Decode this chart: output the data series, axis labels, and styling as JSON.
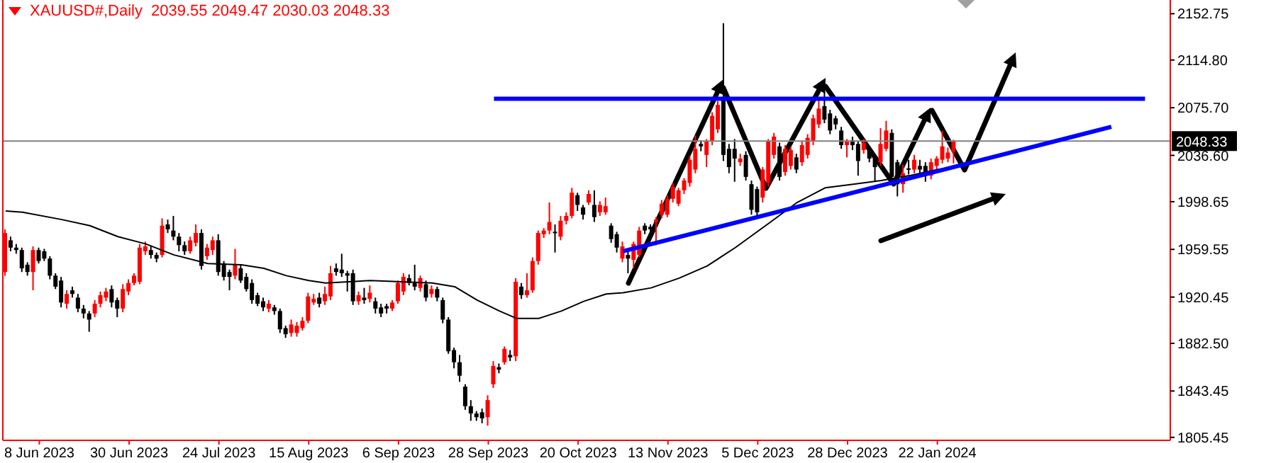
{
  "chart_data": {
    "type": "candlestick",
    "title": "XAUUSD#,Daily",
    "annotations": [
      "2039.55 2049.47 2030.03 2048.33"
    ],
    "marker": "none",
    "categories": [
      null,
      null,
      null,
      null,
      null,
      null,
      "8 Jun 2023",
      null,
      null,
      null,
      null,
      null,
      null,
      null,
      null,
      null,
      null,
      null,
      null,
      null,
      null,
      null,
      "30 Jun 2023",
      null,
      null,
      null,
      null,
      null,
      null,
      null,
      null,
      null,
      null,
      null,
      null,
      null,
      null,
      null,
      "24 Jul 2023",
      null,
      null,
      null,
      null,
      null,
      null,
      null,
      null,
      null,
      null,
      null,
      null,
      null,
      null,
      null,
      "15 Aug 2023",
      null,
      null,
      null,
      null,
      null,
      null,
      null,
      null,
      null,
      null,
      null,
      null,
      null,
      null,
      null,
      "6 Sep 2023",
      null,
      null,
      null,
      null,
      null,
      null,
      null,
      null,
      null,
      null,
      null,
      null,
      null,
      null,
      null,
      "28 Sep 2023",
      null,
      null,
      null,
      null,
      null,
      null,
      null,
      null,
      null,
      null,
      null,
      null,
      null,
      null,
      null,
      "20 Oct 2023",
      null,
      null,
      null,
      null,
      null,
      null,
      null,
      null,
      null,
      null,
      null,
      null,
      null,
      null,
      null,
      "13 Nov 2023",
      null,
      null,
      null,
      null,
      null,
      null,
      null,
      null,
      null,
      null,
      null,
      null,
      null,
      null,
      null,
      "5 Dec 2023",
      null,
      null,
      null,
      null,
      null,
      null,
      null,
      null,
      null,
      null,
      null,
      null,
      null,
      null,
      null,
      "28 Dec 2023",
      null,
      null,
      null,
      null,
      null,
      null,
      null,
      null,
      null,
      null,
      null,
      null,
      null,
      null,
      null,
      "22 Jan 2024",
      null,
      null,
      null,
      null,
      null,
      null,
      null,
      null,
      null,
      null,
      null,
      null,
      null,
      null,
      null,
      null,
      null,
      null,
      null,
      null,
      null,
      null,
      null,
      null,
      null,
      null,
      null,
      null,
      null,
      null,
      null,
      null,
      null,
      null,
      null,
      null,
      null,
      null,
      null,
      null,
      null
    ],
    "ohlc": [
      [
        1941,
        1976,
        1938,
        1973
      ],
      [
        1967,
        1970,
        1958,
        1961
      ],
      [
        1961,
        1964,
        1956,
        1959
      ],
      [
        1959,
        1961,
        1941,
        1944
      ],
      [
        1947,
        1949,
        1938,
        1941
      ],
      [
        1941,
        1962,
        1926,
        1959
      ],
      [
        1959,
        1961,
        1948,
        1950
      ],
      [
        1958,
        1960,
        1950,
        1952
      ],
      [
        1952,
        1954,
        1935,
        1938
      ],
      [
        1938,
        1940,
        1927,
        1929
      ],
      [
        1934,
        1937,
        1912,
        1916
      ],
      [
        1915,
        1926,
        1911,
        1923
      ],
      [
        1926,
        1929,
        1920,
        1923
      ],
      [
        1920,
        1923,
        1908,
        1911
      ],
      [
        1911,
        1914,
        1903,
        1907
      ],
      [
        1907,
        1909,
        1892,
        1902
      ],
      [
        1907,
        1918,
        1904,
        1915
      ],
      [
        1915,
        1925,
        1912,
        1922
      ],
      [
        1920,
        1928,
        1917,
        1925
      ],
      [
        1927,
        1930,
        1912,
        1916
      ],
      [
        1918,
        1920,
        1904,
        1911
      ],
      [
        1911,
        1931,
        1908,
        1927
      ],
      [
        1925,
        1935,
        1922,
        1932
      ],
      [
        1932,
        1940,
        1930,
        1938
      ],
      [
        1933,
        1964,
        1931,
        1961
      ],
      [
        1958,
        1966,
        1955,
        1962
      ],
      [
        1959,
        1962,
        1952,
        1955
      ],
      [
        1955,
        1957,
        1949,
        1952
      ],
      [
        1955,
        1985,
        1953,
        1979
      ],
      [
        1980,
        1984,
        1973,
        1976
      ],
      [
        1975,
        1987,
        1967,
        1970
      ],
      [
        1970,
        1973,
        1958,
        1963
      ],
      [
        1963,
        1966,
        1955,
        1958
      ],
      [
        1958,
        1970,
        1956,
        1967
      ],
      [
        1965,
        1980,
        1962,
        1973
      ],
      [
        1973,
        1976,
        1943,
        1946
      ],
      [
        1954,
        1964,
        1951,
        1961
      ],
      [
        1959,
        1970,
        1955,
        1967
      ],
      [
        1967,
        1972,
        1938,
        1941
      ],
      [
        1948,
        1950,
        1934,
        1937
      ],
      [
        1941,
        1943,
        1926,
        1937
      ],
      [
        1938,
        1960,
        1935,
        1947
      ],
      [
        1944,
        1947,
        1932,
        1934
      ],
      [
        1937,
        1940,
        1925,
        1927
      ],
      [
        1932,
        1935,
        1915,
        1918
      ],
      [
        1922,
        1924,
        1913,
        1915
      ],
      [
        1917,
        1920,
        1909,
        1912
      ],
      [
        1911,
        1918,
        1908,
        1915
      ],
      [
        1912,
        1914,
        1906,
        1909
      ],
      [
        1909,
        1911,
        1891,
        1894
      ],
      [
        1895,
        1897,
        1887,
        1890
      ],
      [
        1891,
        1902,
        1888,
        1898
      ],
      [
        1891,
        1900,
        1888,
        1897
      ],
      [
        1895,
        1904,
        1893,
        1901
      ],
      [
        1901,
        1924,
        1899,
        1921
      ],
      [
        1916,
        1923,
        1914,
        1919
      ],
      [
        1920,
        1924,
        1912,
        1915
      ],
      [
        1917,
        1929,
        1914,
        1923
      ],
      [
        1921,
        1946,
        1918,
        1940
      ],
      [
        1944,
        1948,
        1938,
        1941
      ],
      [
        1943,
        1956,
        1937,
        1940
      ],
      [
        1940,
        1942,
        1925,
        1938
      ],
      [
        1940,
        1943,
        1914,
        1917
      ],
      [
        1917,
        1925,
        1914,
        1922
      ],
      [
        1920,
        1928,
        1915,
        1918
      ],
      [
        1919,
        1930,
        1916,
        1924
      ],
      [
        1917,
        1920,
        1907,
        1911
      ],
      [
        1912,
        1915,
        1904,
        1907
      ],
      [
        1913,
        1915,
        1907,
        1911
      ],
      [
        1911,
        1918,
        1909,
        1916
      ],
      [
        1917,
        1934,
        1915,
        1932
      ],
      [
        1925,
        1940,
        1922,
        1937
      ],
      [
        1936,
        1939,
        1930,
        1932
      ],
      [
        1932,
        1947,
        1926,
        1929
      ],
      [
        1928,
        1938,
        1925,
        1936
      ],
      [
        1931,
        1934,
        1917,
        1920
      ],
      [
        1923,
        1930,
        1920,
        1927
      ],
      [
        1927,
        1929,
        1917,
        1920
      ],
      [
        1918,
        1920,
        1899,
        1902
      ],
      [
        1902,
        1904,
        1874,
        1876
      ],
      [
        1877,
        1879,
        1862,
        1867
      ],
      [
        1867,
        1873,
        1851,
        1856
      ],
      [
        1847,
        1849,
        1828,
        1831
      ],
      [
        1831,
        1836,
        1819,
        1825
      ],
      [
        1825,
        1827,
        1819,
        1822
      ],
      [
        1826,
        1829,
        1817,
        1821
      ],
      [
        1822,
        1840,
        1815,
        1836
      ],
      [
        1849,
        1868,
        1846,
        1864
      ],
      [
        1863,
        1866,
        1858,
        1861
      ],
      [
        1867,
        1880,
        1865,
        1878
      ],
      [
        1873,
        1877,
        1868,
        1871
      ],
      [
        1872,
        1936,
        1868,
        1933
      ],
      [
        1929,
        1932,
        1919,
        1922
      ],
      [
        1922,
        1940,
        1920,
        1926
      ],
      [
        1926,
        1953,
        1924,
        1950
      ],
      [
        1950,
        1975,
        1947,
        1973
      ],
      [
        1972,
        1977,
        1969,
        1975
      ],
      [
        1975,
        1998,
        1972,
        1982
      ],
      [
        1974,
        1980,
        1957,
        1973
      ],
      [
        1970,
        1987,
        1967,
        1983
      ],
      [
        1983,
        1990,
        1980,
        1987
      ],
      [
        1987,
        2010,
        1985,
        2006
      ],
      [
        2004,
        2006,
        1991,
        1996
      ],
      [
        1994,
        1996,
        1984,
        1988
      ],
      [
        1998,
        2008,
        1996,
        2005
      ],
      [
        1996,
        2008,
        1982,
        1986
      ],
      [
        1990,
        1999,
        1987,
        1996
      ],
      [
        1990,
        2002,
        1988,
        1995
      ],
      [
        1979,
        1981,
        1965,
        1968
      ],
      [
        1972,
        1974,
        1957,
        1961
      ],
      [
        1952,
        1966,
        1949,
        1962
      ],
      [
        1955,
        1958,
        1940,
        1952
      ],
      [
        1951,
        1966,
        1944,
        1964
      ],
      [
        1955,
        1978,
        1953,
        1975
      ],
      [
        1979,
        1981,
        1972,
        1975
      ],
      [
        1978,
        1980,
        1973,
        1976
      ],
      [
        1982,
        1986,
        1963,
        1984
      ],
      [
        1988,
        2000,
        1985,
        1997
      ],
      [
        1988,
        2004,
        1986,
        2001
      ],
      [
        2001,
        2014,
        1998,
        2011
      ],
      [
        1997,
        2010,
        1995,
        2008
      ],
      [
        2008,
        2018,
        2005,
        2016
      ],
      [
        2014,
        2036,
        2011,
        2033
      ],
      [
        2025,
        2053,
        2022,
        2042
      ],
      [
        2046,
        2049,
        2040,
        2044
      ],
      [
        2037,
        2050,
        2027,
        2048
      ],
      [
        2048,
        2072,
        2045,
        2069
      ],
      [
        2058,
        2081,
        2055,
        2078
      ],
      [
        2083,
        2145,
        2032,
        2037
      ],
      [
        2042,
        2046,
        2022,
        2027
      ],
      [
        2042,
        2050,
        2015,
        2034
      ],
      [
        2031,
        2038,
        2028,
        2034
      ],
      [
        2037,
        2040,
        2016,
        2019
      ],
      [
        2013,
        2016,
        1988,
        1992
      ],
      [
        2009,
        2011,
        1985,
        1990
      ],
      [
        2002,
        2027,
        1998,
        2025
      ],
      [
        2014,
        2050,
        2011,
        2048
      ],
      [
        2037,
        2055,
        2034,
        2052
      ],
      [
        2044,
        2047,
        2016,
        2019
      ],
      [
        2023,
        2045,
        2020,
        2042
      ],
      [
        2028,
        2044,
        2025,
        2041
      ],
      [
        2035,
        2038,
        2022,
        2025
      ],
      [
        2031,
        2048,
        2028,
        2045
      ],
      [
        2037,
        2054,
        2034,
        2051
      ],
      [
        2048,
        2070,
        2045,
        2067
      ],
      [
        2062,
        2083,
        2059,
        2075
      ],
      [
        2077,
        2089,
        2063,
        2066
      ],
      [
        2071,
        2074,
        2054,
        2057
      ],
      [
        2067,
        2069,
        2058,
        2062
      ],
      [
        2057,
        2060,
        2042,
        2045
      ],
      [
        2045,
        2050,
        2035,
        2048
      ],
      [
        2049,
        2052,
        2041,
        2045
      ],
      [
        2046,
        2048,
        2020,
        2032
      ],
      [
        2041,
        2050,
        2038,
        2047
      ],
      [
        2042,
        2044,
        2031,
        2034
      ],
      [
        2034,
        2036,
        2015,
        2027
      ],
      [
        2031,
        2059,
        2028,
        2046
      ],
      [
        2042,
        2065,
        2040,
        2057
      ],
      [
        2055,
        2058,
        2016,
        2019
      ],
      [
        2031,
        2033,
        2003,
        2013
      ],
      [
        2013,
        2029,
        2006,
        2022
      ],
      [
        2026,
        2033,
        2021,
        2025
      ],
      [
        2025,
        2037,
        2022,
        2033
      ],
      [
        2028,
        2033,
        2020,
        2025
      ],
      [
        2028,
        2031,
        2015,
        2022
      ],
      [
        2020,
        2034,
        2017,
        2031
      ],
      [
        2028,
        2036,
        2024,
        2034
      ],
      [
        2033,
        2057,
        2030,
        2044
      ],
      [
        2034,
        2043,
        2031,
        2039
      ],
      [
        2039.55,
        2049.47,
        2030.03,
        2048.33
      ],
      null,
      null,
      null,
      null,
      null,
      null,
      null,
      null,
      null,
      null,
      null,
      null,
      null,
      null,
      null,
      null,
      null,
      null,
      null,
      null,
      null,
      null,
      null,
      null,
      null,
      null,
      null,
      null,
      null,
      null,
      null,
      null,
      null,
      null,
      null,
      null,
      null,
      null
    ],
    "colors": [
      "#ff0000",
      "#000000",
      "#000000",
      "#000000",
      "#000000",
      "#ff0000",
      "#000000",
      "#000000",
      "#000000",
      "#000000",
      "#000000",
      "#ff0000",
      "#000000",
      "#000000",
      "#000000",
      "#000000",
      "#ff0000",
      "#ff0000",
      "#ff0000",
      "#000000",
      "#000000",
      "#ff0000",
      "#ff0000",
      "#ff0000",
      "#ff0000",
      "#ff0000",
      "#000000",
      "#000000",
      "#ff0000",
      "#000000",
      "#000000",
      "#000000",
      "#000000",
      "#ff0000",
      "#ff0000",
      "#000000",
      "#ff0000",
      "#ff0000",
      "#000000",
      "#000000",
      "#000000",
      "#ff0000",
      "#000000",
      "#000000",
      "#000000",
      "#000000",
      "#000000",
      "#ff0000",
      "#000000",
      "#000000",
      "#000000",
      "#ff0000",
      "#ff0000",
      "#ff0000",
      "#ff0000",
      "#ff0000",
      "#000000",
      "#ff0000",
      "#ff0000",
      "#000000",
      "#000000",
      "#000000",
      "#000000",
      "#ff0000",
      "#000000",
      "#ff0000",
      "#000000",
      "#000000",
      "#000000",
      "#ff0000",
      "#ff0000",
      "#ff0000",
      "#000000",
      "#000000",
      "#ff0000",
      "#000000",
      "#ff0000",
      "#000000",
      "#000000",
      "#000000",
      "#000000",
      "#000000",
      "#000000",
      "#000000",
      "#000000",
      "#000000",
      "#ff0000",
      "#ff0000",
      "#000000",
      "#ff0000",
      "#000000",
      "#ff0000",
      "#000000",
      "#ff0000",
      "#ff0000",
      "#ff0000",
      "#ff0000",
      "#ff0000",
      "#000000",
      "#ff0000",
      "#ff0000",
      "#ff0000",
      "#000000",
      "#000000",
      "#ff0000",
      "#000000",
      "#ff0000",
      "#ff0000",
      "#000000",
      "#000000",
      "#ff0000",
      "#000000",
      "#ff0000",
      "#ff0000",
      "#000000",
      "#000000",
      "#ff0000",
      "#ff0000",
      "#ff0000",
      "#ff0000",
      "#ff0000",
      "#ff0000",
      "#ff0000",
      "#ff0000",
      "#000000",
      "#ff0000",
      "#ff0000",
      "#ff0000",
      "#000000",
      "#000000",
      "#000000",
      "#ff0000",
      "#000000",
      "#000000",
      "#000000",
      "#ff0000",
      "#ff0000",
      "#ff0000",
      "#000000",
      "#ff0000",
      "#ff0000",
      "#000000",
      "#ff0000",
      "#ff0000",
      "#ff0000",
      "#ff0000",
      "#000000",
      "#000000",
      "#000000",
      "#000000",
      "#ff0000",
      "#000000",
      "#000000",
      "#ff0000",
      "#000000",
      "#000000",
      "#ff0000",
      "#ff0000",
      "#000000",
      "#000000",
      "#ff0000",
      "#000000",
      "#ff0000",
      "#000000",
      "#000000",
      "#ff0000",
      "#ff0000",
      "#ff0000",
      "#ff0000",
      "#ff0000",
      null,
      null,
      null,
      null,
      null,
      null,
      null,
      null,
      null,
      null,
      null,
      null,
      null,
      null,
      null,
      null,
      null,
      null,
      null,
      null,
      null,
      null,
      null,
      null,
      null,
      null,
      null,
      null,
      null,
      null,
      null,
      null,
      null,
      null,
      null,
      null,
      null,
      null
    ],
    "series": [
      {
        "type": "line",
        "color": "#000000",
        "values": [
          1991,
          null,
          null,
          1990,
          null,
          null,
          null,
          null,
          null,
          null,
          1984,
          null,
          null,
          null,
          null,
          1979,
          null,
          null,
          null,
          null,
          1970,
          null,
          null,
          null,
          null,
          1964,
          null,
          null,
          null,
          null,
          1955,
          null,
          null,
          null,
          null,
          null,
          1948,
          null,
          null,
          null,
          null,
          null,
          1947,
          null,
          null,
          null,
          1944,
          null,
          null,
          null,
          1938,
          null,
          null,
          null,
          1934,
          null,
          null,
          1932,
          null,
          null,
          null,
          null,
          null,
          null,
          null,
          1934,
          null,
          null,
          null,
          null,
          null,
          null,
          null,
          null,
          null,
          null,
          1932,
          null,
          null,
          null,
          1929,
          null,
          null,
          null,
          1918,
          null,
          null,
          null,
          1909,
          null,
          null,
          1903,
          null,
          null,
          null,
          1903,
          null,
          null,
          null,
          1909,
          null,
          null,
          null,
          1917,
          null,
          null,
          null,
          1923,
          null,
          null,
          1924,
          null,
          null,
          null,
          null,
          1928,
          null,
          null,
          null,
          null,
          1936,
          null,
          null,
          null,
          null,
          1946,
          null,
          null,
          null,
          null,
          1961,
          null,
          null,
          null,
          null,
          null,
          1981,
          null,
          null,
          null,
          null,
          1998,
          null,
          null,
          null,
          null,
          2010,
          null,
          null,
          null,
          null,
          2013,
          null,
          null,
          null,
          null,
          2016,
          null,
          null,
          null,
          null,
          2020,
          null,
          null,
          null,
          null,
          2025,
          null,
          null,
          2027,
          null,
          null,
          null,
          null,
          null,
          null,
          null,
          null,
          null,
          null,
          null,
          null,
          null,
          null,
          null,
          null,
          null,
          null,
          null,
          null,
          null,
          null,
          null,
          null,
          null,
          null,
          null,
          null,
          null,
          null,
          null,
          null,
          null,
          null,
          null,
          null,
          null,
          null
        ]
      },
      {
        "type": "line",
        "color": "#0000ff",
        "values": [
          null,
          null,
          null,
          null,
          null,
          null,
          null,
          null,
          null,
          null,
          null,
          null,
          null,
          null,
          null,
          null,
          null,
          null,
          null,
          null,
          null,
          null,
          null,
          null,
          null,
          null,
          null,
          null,
          null,
          null,
          null,
          null,
          null,
          null,
          null,
          null,
          null,
          null,
          null,
          null,
          null,
          null,
          null,
          null,
          null,
          null,
          null,
          null,
          null,
          null,
          null,
          null,
          null,
          null,
          null,
          null,
          null,
          null,
          null,
          null,
          null,
          null,
          null,
          null,
          null,
          null,
          null,
          null,
          null,
          null,
          null,
          null,
          null,
          null,
          null,
          null,
          null,
          null,
          null,
          null,
          null,
          null,
          null,
          null,
          null,
          null,
          null,
          2083,
          null,
          null,
          null,
          null,
          null,
          null,
          null,
          null,
          null,
          null,
          null,
          null,
          null,
          null,
          null,
          null,
          null,
          null,
          null,
          null,
          null,
          null,
          null,
          null,
          null,
          null,
          null,
          null,
          null,
          null,
          null,
          null,
          null,
          null,
          null,
          null,
          null,
          null,
          null,
          null,
          null,
          null,
          null,
          null,
          null,
          null,
          null,
          null,
          null,
          null,
          null,
          null,
          null,
          null,
          null,
          null,
          null,
          null,
          null,
          null,
          null,
          null,
          null,
          null,
          null,
          null,
          null,
          null,
          null,
          null,
          null,
          null,
          null,
          null,
          null,
          null,
          null,
          null,
          null,
          null,
          null,
          null,
          null,
          null,
          null,
          null,
          null,
          null,
          null,
          null,
          null,
          null,
          null,
          null,
          null,
          null,
          null,
          null,
          null,
          null,
          null,
          null,
          null,
          null,
          null,
          null,
          null,
          null,
          null,
          null,
          null,
          null,
          null,
          null,
          null,
          2083,
          null,
          null,
          null,
          null
        ]
      },
      {
        "type": "line",
        "color": "#0000ff",
        "values": [
          null,
          null,
          null,
          null,
          null,
          null,
          null,
          null,
          null,
          null,
          null,
          null,
          null,
          null,
          null,
          null,
          null,
          null,
          null,
          null,
          null,
          null,
          null,
          null,
          null,
          null,
          null,
          null,
          null,
          null,
          null,
          null,
          null,
          null,
          null,
          null,
          null,
          null,
          null,
          null,
          null,
          null,
          null,
          null,
          null,
          null,
          null,
          null,
          null,
          null,
          null,
          null,
          null,
          null,
          null,
          null,
          null,
          null,
          null,
          null,
          null,
          null,
          null,
          null,
          null,
          null,
          null,
          null,
          null,
          null,
          null,
          null,
          null,
          null,
          null,
          null,
          null,
          null,
          null,
          null,
          null,
          null,
          null,
          null,
          null,
          null,
          null,
          null,
          null,
          null,
          null,
          null,
          null,
          null,
          null,
          null,
          null,
          null,
          null,
          null,
          null,
          null,
          null,
          null,
          null,
          null,
          null,
          null,
          null,
          null,
          1958,
          null,
          null,
          null,
          null,
          null,
          null,
          null,
          null,
          null,
          null,
          null,
          null,
          null,
          null,
          null,
          null,
          null,
          null,
          null,
          null,
          null,
          null,
          null,
          null,
          null,
          null,
          null,
          null,
          null,
          null,
          null,
          null,
          null,
          null,
          null,
          null,
          null,
          null,
          null,
          null,
          null,
          null,
          null,
          null,
          null,
          null,
          null,
          null,
          null,
          null,
          null,
          null,
          null,
          null,
          null,
          null,
          null,
          null,
          null,
          null,
          null,
          null,
          null,
          null,
          null,
          null,
          null,
          null,
          null,
          null,
          null,
          null,
          null,
          null,
          null,
          null,
          null,
          null,
          null,
          null,
          null,
          null,
          null,
          null,
          null,
          null,
          2060,
          null,
          null,
          null,
          null,
          null,
          null,
          null,
          null,
          null,
          null
        ]
      }
    ],
    "ylim": [
      1803,
      2164
    ],
    "yticks": [
      1805.45,
      1843.45,
      {
        "value": 1882.5,
        "label": "1882.50"
      },
      1920.45,
      1959.55,
      1998.65,
      {
        "value": 2036.6,
        "label": "2036.60"
      },
      {
        "value": 2075.7,
        "label": "2075.70"
      },
      {
        "value": 2114.8,
        "label": "2114.80"
      },
      2152.75
    ],
    "ref_lines": [
      {
        "axis": "y",
        "value": 2048.33,
        "label": "2048.33",
        "color": "#808080"
      }
    ]
  }
}
